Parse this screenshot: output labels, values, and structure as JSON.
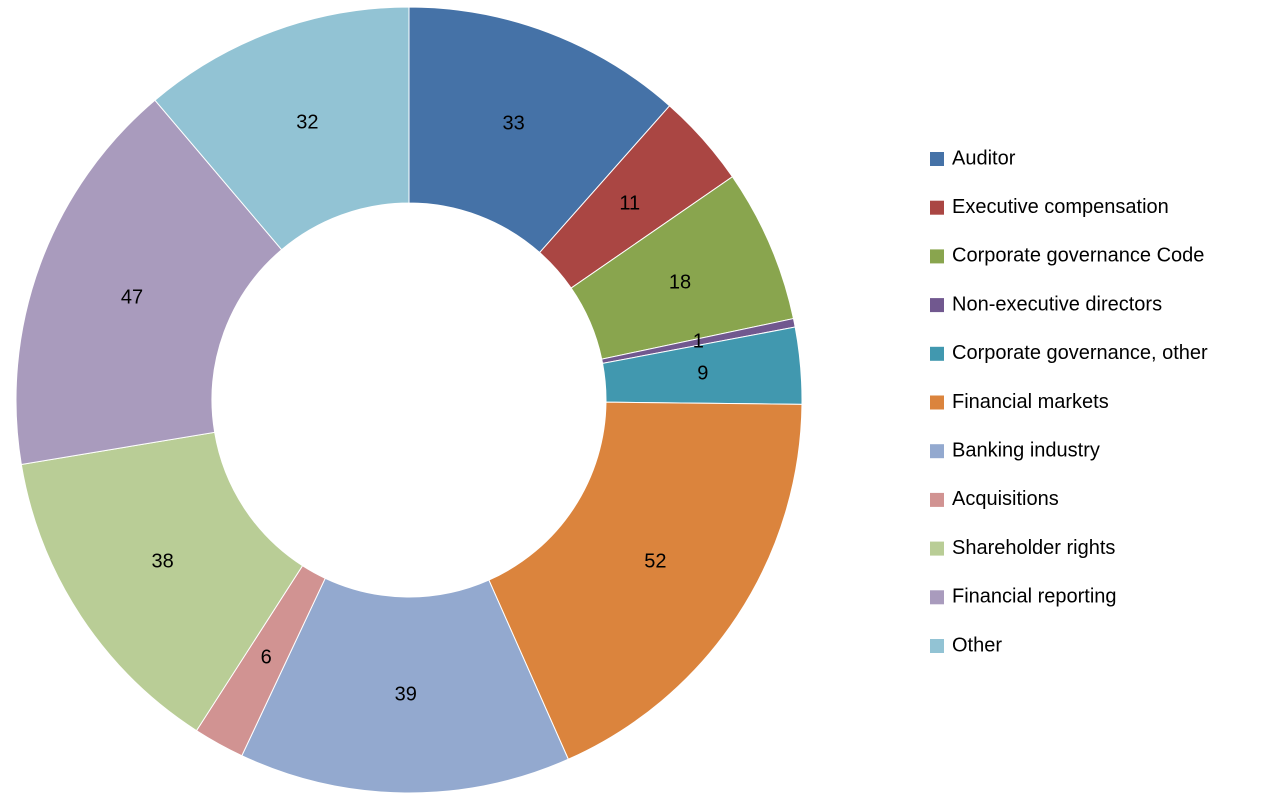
{
  "chart_data": {
    "type": "donut",
    "categories": [
      "Auditor",
      "Executive compensation",
      "Corporate governance Code",
      "Non-executive directors",
      "Corporate governance, other",
      "Financial markets",
      "Banking industry",
      "Acquisitions",
      "Shareholder rights",
      "Financial reporting",
      "Other"
    ],
    "values": [
      33,
      11,
      18,
      1,
      9,
      52,
      39,
      6,
      38,
      47,
      32
    ],
    "colors": [
      "#4572a7",
      "#aa4643",
      "#89a54e",
      "#71588f",
      "#4198af",
      "#db843d",
      "#93a9cf",
      "#d19392",
      "#b9cd96",
      "#a99bbd",
      "#92c3d4"
    ],
    "legend": "right"
  }
}
